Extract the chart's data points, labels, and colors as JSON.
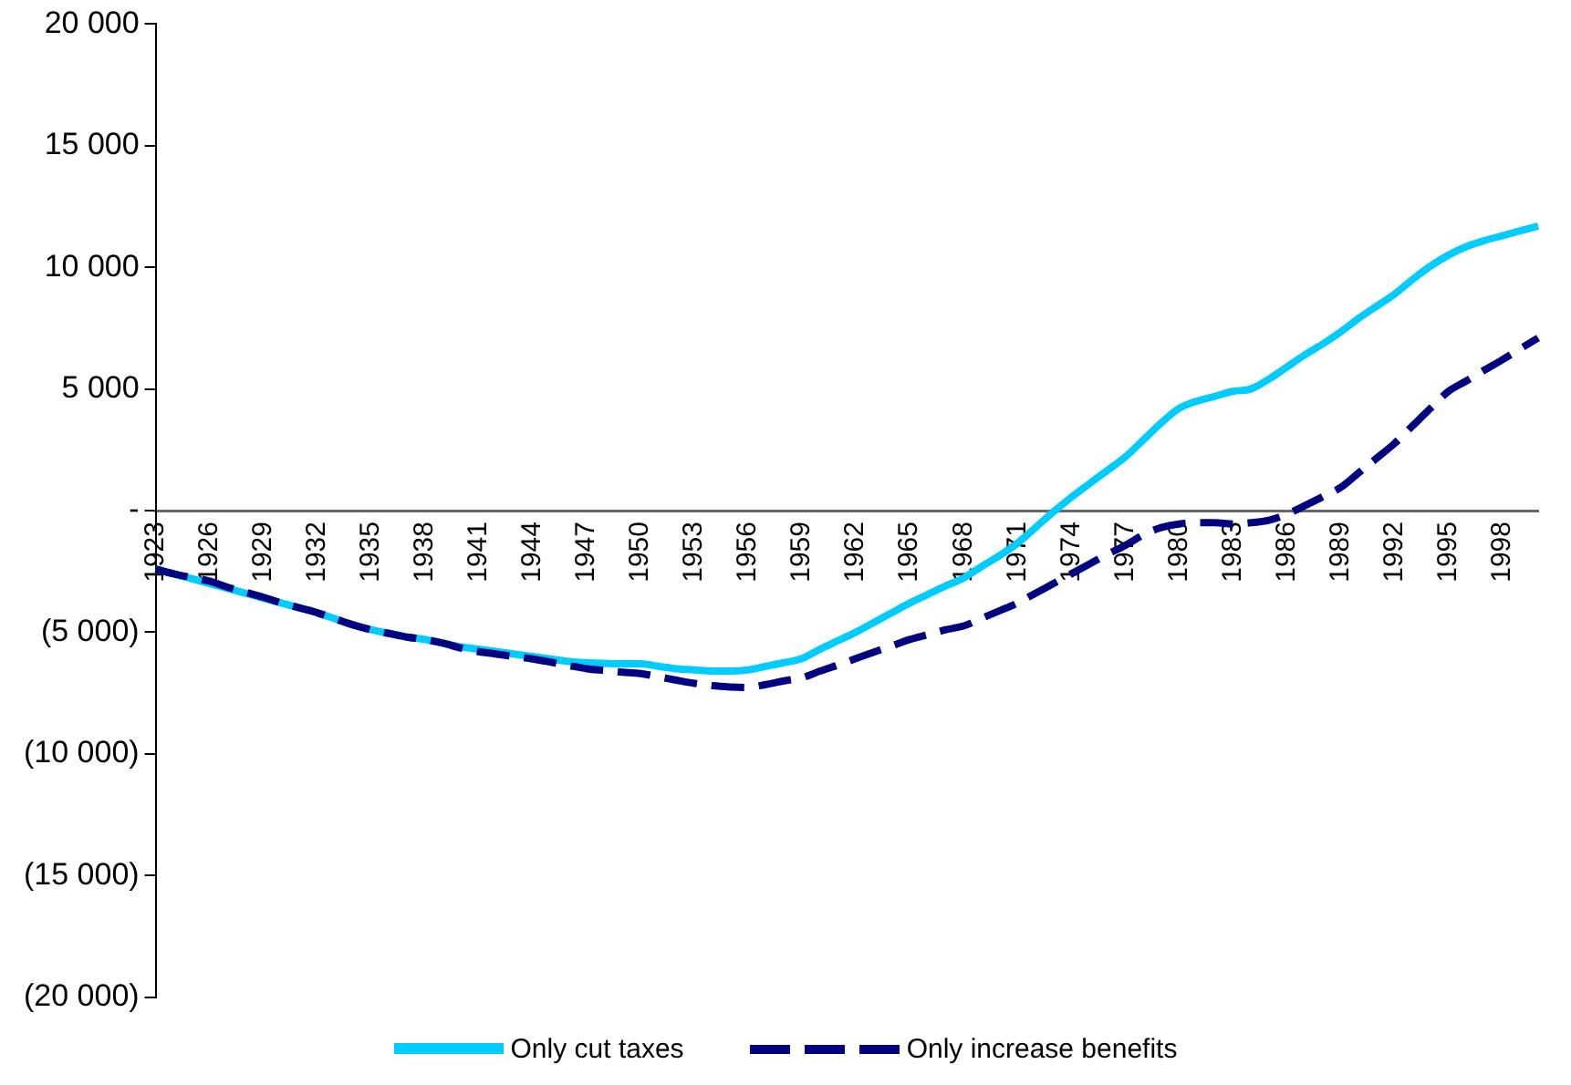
{
  "chart_data": {
    "type": "line",
    "categories": [
      "1923",
      null,
      null,
      "1926",
      null,
      null,
      "1929",
      null,
      null,
      "1932",
      null,
      null,
      "1935",
      null,
      null,
      "1938",
      null,
      null,
      "1941",
      null,
      null,
      "1944",
      null,
      null,
      "1947",
      null,
      null,
      "1950",
      null,
      null,
      "1953",
      null,
      null,
      "1956",
      null,
      null,
      "1959",
      null,
      null,
      "1962",
      null,
      null,
      "1965",
      null,
      null,
      "1968",
      null,
      null,
      "1971",
      null,
      null,
      "1974",
      null,
      null,
      "1977",
      null,
      null,
      "1980",
      null,
      null,
      "1983",
      null,
      null,
      "1986",
      null,
      null,
      "1989",
      null,
      null,
      "1992",
      null,
      null,
      "1995",
      null,
      null,
      "1998",
      null,
      null
    ],
    "series": [
      {
        "name": "Only cut taxes",
        "color": "#00ccff",
        "line_style": "solid",
        "values": [
          -2400,
          -2600,
          -2800,
          -3000,
          -3200,
          -3400,
          -3600,
          -3800,
          -4000,
          -4200,
          -4450,
          -4700,
          -4900,
          -5050,
          -5200,
          -5300,
          -5450,
          -5600,
          -5700,
          -5800,
          -5900,
          -6000,
          -6100,
          -6200,
          -6250,
          -6280,
          -6300,
          -6300,
          -6400,
          -6500,
          -6550,
          -6600,
          -6600,
          -6550,
          -6400,
          -6250,
          -6080,
          -5700,
          -5350,
          -5000,
          -4600,
          -4200,
          -3800,
          -3450,
          -3100,
          -2770,
          -2300,
          -1850,
          -1340,
          -700,
          -50,
          550,
          1100,
          1650,
          2200,
          2900,
          3600,
          4200,
          4500,
          4700,
          4900,
          5000,
          5400,
          5900,
          6400,
          6850,
          7350,
          7900,
          8400,
          8900,
          9500,
          10050,
          10500,
          10850,
          11100,
          11300,
          11500,
          11700
        ]
      },
      {
        "name": "Only increase benefits",
        "color": "#000080",
        "line_style": "dashed",
        "values": [
          -2400,
          -2600,
          -2750,
          -2900,
          -3150,
          -3350,
          -3560,
          -3800,
          -4000,
          -4200,
          -4450,
          -4700,
          -4900,
          -5050,
          -5200,
          -5300,
          -5450,
          -5650,
          -5800,
          -5900,
          -6000,
          -6100,
          -6230,
          -6370,
          -6500,
          -6570,
          -6640,
          -6700,
          -6830,
          -6970,
          -7100,
          -7200,
          -7250,
          -7270,
          -7150,
          -7000,
          -6870,
          -6600,
          -6350,
          -6080,
          -5820,
          -5560,
          -5300,
          -5100,
          -4900,
          -4740,
          -4430,
          -4120,
          -3800,
          -3400,
          -3000,
          -2600,
          -2200,
          -1800,
          -1430,
          -1000,
          -700,
          -550,
          -500,
          -500,
          -550,
          -500,
          -400,
          -150,
          200,
          570,
          950,
          1550,
          2150,
          2760,
          3480,
          4200,
          4900,
          5330,
          5770,
          6200,
          6650,
          7100
        ]
      }
    ],
    "ylim": [
      -20000,
      20000
    ],
    "yticks": [
      {
        "value": -20000,
        "label": "(20 000)"
      },
      {
        "value": -15000,
        "label": "(15 000)"
      },
      {
        "value": -10000,
        "label": "(10 000)"
      },
      {
        "value": -5000,
        "label": "(5 000)"
      },
      {
        "value": 0,
        "label": "-"
      },
      {
        "value": 5000,
        "label": "5 000"
      },
      {
        "value": 10000,
        "label": "10 000"
      },
      {
        "value": 15000,
        "label": "15 000"
      },
      {
        "value": 20000,
        "label": "20 000"
      }
    ],
    "grid": false,
    "legend": "bottom",
    "marker": "none"
  }
}
